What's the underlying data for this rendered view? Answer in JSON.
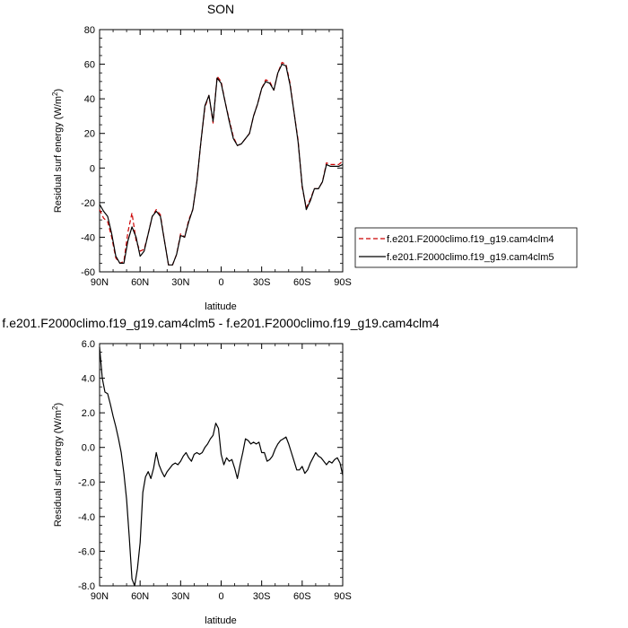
{
  "chart_data": [
    {
      "type": "line",
      "title": "SON",
      "xlabel": "latitude",
      "ylabel": "Residual surf energy (W/m",
      "ylabel_sup": "2",
      "ylabel_end": ")",
      "xlim": [
        90,
        -90
      ],
      "ylim": [
        -60,
        80
      ],
      "xticks": [
        90,
        60,
        30,
        0,
        -30,
        -60,
        -90
      ],
      "xticklabels": [
        "90N",
        "60N",
        "30N",
        "0",
        "30S",
        "60S",
        "90S"
      ],
      "yticks": [
        -60,
        -40,
        -20,
        0,
        20,
        40,
        60,
        80
      ],
      "yticklabels": [
        "-60",
        "-40",
        "-20",
        "0",
        "20",
        "40",
        "60",
        "80"
      ],
      "legend": "right",
      "series": [
        {
          "name": "f.e201.F2000climo.f19_g19.cam4clm4",
          "color": "#cc0000",
          "dash": "dashed",
          "x": [
            90,
            87,
            84,
            81,
            78,
            75,
            72,
            69,
            66,
            63,
            60,
            57,
            54,
            51,
            48,
            45,
            42,
            39,
            36,
            33,
            30,
            27,
            24,
            21,
            18,
            15,
            12,
            9,
            6,
            3,
            0,
            -3,
            -6,
            -9,
            -12,
            -15,
            -18,
            -21,
            -24,
            -27,
            -30,
            -33,
            -36,
            -39,
            -42,
            -45,
            -48,
            -51,
            -54,
            -57,
            -60,
            -63,
            -66,
            -69,
            -72,
            -75,
            -78,
            -81,
            -84,
            -87,
            -90
          ],
          "y": [
            -24,
            -29,
            -31,
            -40,
            -52,
            -55,
            -54,
            -37,
            -26,
            -42,
            -48,
            -47,
            -38,
            -28,
            -24,
            -27,
            -42,
            -56,
            -56,
            -50,
            -38,
            -40,
            -30,
            -24,
            -8,
            15,
            35,
            42,
            26,
            53,
            50,
            38,
            28,
            18,
            13,
            14,
            17,
            20,
            30,
            37,
            46,
            51,
            50,
            45,
            55,
            61,
            60,
            49,
            32,
            16,
            -11,
            -23,
            -18,
            -12,
            -12,
            -8,
            3,
            2,
            2,
            2,
            4
          ]
        },
        {
          "name": "f.e201.F2000climo.f19_g19.cam4clm5",
          "color": "#000000",
          "dash": "solid",
          "x": [
            90,
            87,
            84,
            81,
            78,
            75,
            72,
            69,
            66,
            63,
            60,
            57,
            54,
            51,
            48,
            45,
            42,
            39,
            36,
            33,
            30,
            27,
            24,
            21,
            18,
            15,
            12,
            9,
            6,
            3,
            0,
            -3,
            -6,
            -9,
            -12,
            -15,
            -18,
            -21,
            -24,
            -27,
            -30,
            -33,
            -36,
            -39,
            -42,
            -45,
            -48,
            -51,
            -54,
            -57,
            -60,
            -63,
            -66,
            -69,
            -72,
            -75,
            -78,
            -81,
            -84,
            -87,
            -90
          ],
          "y": [
            -21,
            -25,
            -28,
            -38,
            -51,
            -55,
            -55,
            -42,
            -34,
            -40,
            -51,
            -48,
            -38,
            -28,
            -25,
            -28,
            -42,
            -56,
            -56,
            -50,
            -39,
            -40,
            -31,
            -24,
            -8,
            15,
            36,
            42,
            27,
            52,
            49,
            38,
            27,
            17,
            13,
            14,
            17,
            20,
            30,
            37,
            46,
            50,
            49,
            45,
            55,
            60,
            59,
            48,
            32,
            15,
            -10,
            -24,
            -19,
            -12,
            -12,
            -8,
            2,
            1,
            1,
            1,
            2
          ]
        }
      ]
    },
    {
      "type": "line",
      "title": "f.e201.F2000climo.f19_g19.cam4clm5 - f.e201.F2000climo.f19_g19.cam4clm4",
      "xlabel": "latitude",
      "ylabel": "Residual surf energy (W/m",
      "ylabel_sup": "2",
      "ylabel_end": ")",
      "xlim": [
        90,
        -90
      ],
      "ylim": [
        -8,
        6
      ],
      "xticks": [
        90,
        60,
        30,
        0,
        -30,
        -60,
        -90
      ],
      "xticklabels": [
        "90N",
        "60N",
        "30N",
        "0",
        "30S",
        "60S",
        "90S"
      ],
      "yticks": [
        -8,
        -6,
        -4,
        -2,
        0,
        2,
        4,
        6
      ],
      "yticklabels": [
        "-8.0",
        "-6.0",
        "-4.0",
        "-2.0",
        "0.0",
        "2.0",
        "4.0",
        "6.0"
      ],
      "series": [
        {
          "color": "#000000",
          "dash": "solid",
          "x": [
            90,
            88,
            86,
            84,
            82,
            80,
            78,
            76,
            74,
            72,
            70,
            68,
            66,
            64,
            62,
            60,
            58,
            56,
            54,
            52,
            50,
            48,
            46,
            44,
            42,
            40,
            38,
            36,
            34,
            32,
            30,
            28,
            26,
            24,
            22,
            20,
            18,
            16,
            14,
            12,
            10,
            8,
            6,
            4,
            2,
            0,
            -2,
            -4,
            -6,
            -8,
            -10,
            -12,
            -14,
            -16,
            -18,
            -20,
            -22,
            -24,
            -26,
            -28,
            -30,
            -32,
            -34,
            -36,
            -38,
            -40,
            -42,
            -44,
            -46,
            -48,
            -50,
            -52,
            -54,
            -56,
            -58,
            -60,
            -62,
            -64,
            -66,
            -68,
            -70,
            -72,
            -74,
            -76,
            -78,
            -80,
            -82,
            -84,
            -86,
            -88,
            -90
          ],
          "y": [
            5.8,
            4.0,
            3.2,
            3.1,
            2.5,
            1.8,
            1.2,
            0.5,
            -0.3,
            -1.5,
            -3.0,
            -5.2,
            -7.6,
            -8.0,
            -7.0,
            -5.5,
            -2.6,
            -1.7,
            -1.4,
            -1.8,
            -1.2,
            -0.3,
            -1.0,
            -1.4,
            -1.7,
            -1.4,
            -1.2,
            -1.0,
            -0.9,
            -1.0,
            -0.8,
            -0.5,
            -0.3,
            -0.6,
            -0.8,
            -0.4,
            -0.3,
            -0.4,
            -0.3,
            0.0,
            0.2,
            0.5,
            0.7,
            1.4,
            1.1,
            -0.4,
            -1.0,
            -0.6,
            -0.8,
            -0.7,
            -1.2,
            -1.8,
            -1.0,
            -0.3,
            0.5,
            0.4,
            0.2,
            0.3,
            0.2,
            0.3,
            -0.3,
            -0.3,
            -0.8,
            -0.7,
            -0.5,
            -0.1,
            0.2,
            0.4,
            0.5,
            0.6,
            0.2,
            -0.3,
            -0.8,
            -1.3,
            -1.3,
            -1.1,
            -1.5,
            -1.3,
            -0.9,
            -0.6,
            -0.3,
            -0.5,
            -0.6,
            -0.8,
            -1.0,
            -0.8,
            -0.9,
            -0.7,
            -0.6,
            -0.9,
            -1.6
          ]
        }
      ]
    }
  ]
}
